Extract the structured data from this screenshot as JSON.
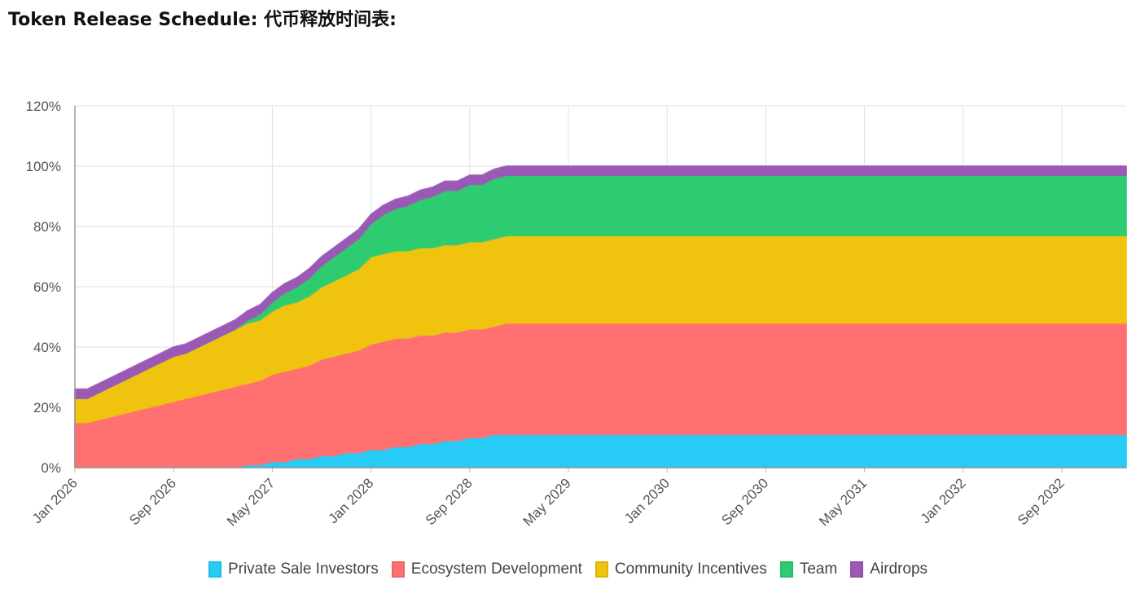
{
  "page": {
    "title": "Token Release Schedule: 代币释放时间表:"
  },
  "chart_data": {
    "type": "area",
    "stacked": true,
    "title": "",
    "xlabel": "",
    "ylabel": "",
    "x_labels": [
      "Jan 2026",
      "Sep 2026",
      "May 2027",
      "Jan 2028",
      "Sep 2028",
      "May 2029",
      "Jan 2030",
      "Sep 2030",
      "May 2031",
      "Jan 2032",
      "Sep 2032"
    ],
    "ylim": [
      0,
      120
    ],
    "y_ticks": [
      "0%",
      "20%",
      "40%",
      "60%",
      "80%",
      "100%",
      "120%"
    ],
    "grid": true,
    "legend_position": "bottom",
    "x": [
      "2026-01",
      "2026-02",
      "2026-03",
      "2026-04",
      "2026-05",
      "2026-06",
      "2026-07",
      "2026-08",
      "2026-09",
      "2026-10",
      "2026-11",
      "2026-12",
      "2027-01",
      "2027-02",
      "2027-03",
      "2027-04",
      "2027-05",
      "2027-06",
      "2027-07",
      "2027-08",
      "2027-09",
      "2027-10",
      "2027-11",
      "2027-12",
      "2028-01",
      "2028-02",
      "2028-03",
      "2028-04",
      "2028-05",
      "2028-06",
      "2028-07",
      "2028-08",
      "2028-09",
      "2028-10",
      "2028-11",
      "2028-12",
      "2029-01",
      "2029-02",
      "2029-03",
      "2029-04",
      "2029-05",
      "2029-06",
      "2029-07",
      "2029-08",
      "2029-09",
      "2029-10",
      "2029-11",
      "2029-12",
      "2030-01",
      "2030-02",
      "2030-03",
      "2030-04",
      "2030-05",
      "2030-06",
      "2030-07",
      "2030-08",
      "2030-09",
      "2030-10",
      "2030-11",
      "2030-12",
      "2031-01",
      "2031-02",
      "2031-03",
      "2031-04",
      "2031-05",
      "2031-06",
      "2031-07",
      "2031-08",
      "2031-09",
      "2031-10",
      "2031-11",
      "2031-12",
      "2032-01",
      "2032-02",
      "2032-03",
      "2032-04",
      "2032-05",
      "2032-06",
      "2032-07",
      "2032-08",
      "2032-09",
      "2032-10",
      "2032-11",
      "2032-12"
    ],
    "series": [
      {
        "name": "Private Sale Investors",
        "color": "#26ccf6",
        "values": [
          0,
          0,
          0,
          0,
          0,
          0,
          0,
          0,
          0,
          0,
          0,
          0,
          0,
          0,
          1,
          1,
          2,
          2,
          3,
          3,
          4,
          4,
          5,
          5,
          6,
          6,
          7,
          7,
          8,
          8,
          9,
          9,
          10,
          10,
          11,
          11,
          11,
          11,
          11,
          11,
          11,
          11,
          11,
          11,
          11,
          11,
          11,
          11,
          11,
          11,
          11,
          11,
          11,
          11,
          11,
          11,
          11,
          11,
          11,
          11,
          11,
          11,
          11,
          11,
          11,
          11,
          11,
          11,
          11,
          11,
          11,
          11,
          11,
          11,
          11,
          11,
          11,
          11,
          11,
          11,
          11,
          11,
          11,
          11
        ]
      },
      {
        "name": "Ecosystem Development",
        "color": "#ff7171",
        "values": [
          15,
          15,
          16,
          17,
          18,
          19,
          20,
          21,
          22,
          23,
          24,
          25,
          26,
          27,
          27,
          28,
          29,
          30,
          30,
          31,
          32,
          33,
          33,
          34,
          35,
          36,
          36,
          36,
          36,
          36,
          36,
          36,
          36,
          36,
          36,
          37,
          37,
          37,
          37,
          37,
          37,
          37,
          37,
          37,
          37,
          37,
          37,
          37,
          37,
          37,
          37,
          37,
          37,
          37,
          37,
          37,
          37,
          37,
          37,
          37,
          37,
          37,
          37,
          37,
          37,
          37,
          37,
          37,
          37,
          37,
          37,
          37,
          37,
          37,
          37,
          37,
          37,
          37,
          37,
          37,
          37,
          37,
          37,
          37
        ]
      },
      {
        "name": "Community Incentives",
        "color": "#f0c30f",
        "values": [
          8,
          8,
          9,
          10,
          11,
          12,
          13,
          14,
          15,
          15,
          16,
          17,
          18,
          19,
          20,
          20,
          21,
          22,
          22,
          23,
          24,
          25,
          26,
          27,
          29,
          29,
          29,
          29,
          29,
          29,
          29,
          29,
          29,
          29,
          29,
          29,
          29,
          29,
          29,
          29,
          29,
          29,
          29,
          29,
          29,
          29,
          29,
          29,
          29,
          29,
          29,
          29,
          29,
          29,
          29,
          29,
          29,
          29,
          29,
          29,
          29,
          29,
          29,
          29,
          29,
          29,
          29,
          29,
          29,
          29,
          29,
          29,
          29,
          29,
          29,
          29,
          29,
          29,
          29,
          29,
          29,
          29,
          29,
          29
        ]
      },
      {
        "name": "Team",
        "color": "#2ecc71",
        "values": [
          0,
          0,
          0,
          0,
          0,
          0,
          0,
          0,
          0,
          0,
          0,
          0,
          0,
          0,
          1,
          2,
          3,
          4,
          5,
          6,
          7,
          8,
          9,
          10,
          11,
          13,
          14,
          15,
          16,
          17,
          18,
          18,
          19,
          19,
          20,
          20,
          20,
          20,
          20,
          20,
          20,
          20,
          20,
          20,
          20,
          20,
          20,
          20,
          20,
          20,
          20,
          20,
          20,
          20,
          20,
          20,
          20,
          20,
          20,
          20,
          20,
          20,
          20,
          20,
          20,
          20,
          20,
          20,
          20,
          20,
          20,
          20,
          20,
          20,
          20,
          20,
          20,
          20,
          20,
          20,
          20,
          20,
          20,
          20
        ]
      },
      {
        "name": "Airdrops",
        "color": "#9b59b6",
        "values": [
          3,
          3,
          3,
          3,
          3,
          3,
          3,
          3,
          3,
          3,
          3,
          3,
          3,
          3,
          3,
          3,
          3,
          3,
          3,
          3,
          3,
          3,
          3,
          3,
          3,
          3,
          3,
          3,
          3,
          3,
          3,
          3,
          3,
          3,
          3,
          3,
          3,
          3,
          3,
          3,
          3,
          3,
          3,
          3,
          3,
          3,
          3,
          3,
          3,
          3,
          3,
          3,
          3,
          3,
          3,
          3,
          3,
          3,
          3,
          3,
          3,
          3,
          3,
          3,
          3,
          3,
          3,
          3,
          3,
          3,
          3,
          3,
          3,
          3,
          3,
          3,
          3,
          3,
          3,
          3,
          3,
          3,
          3,
          3
        ]
      }
    ]
  }
}
